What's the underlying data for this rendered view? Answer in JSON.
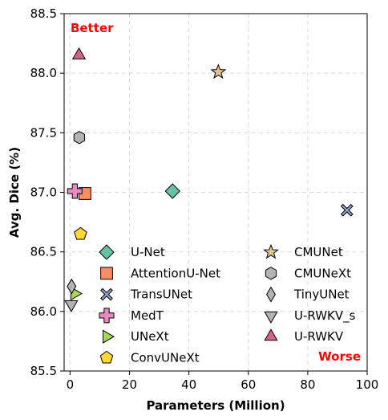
{
  "chart_data": {
    "type": "scatter",
    "xlabel": "Parameters (Million)",
    "ylabel": "Avg. Dice (%)",
    "xlim": [
      -2,
      100
    ],
    "ylim": [
      85.5,
      88.5
    ],
    "xticks": [
      0,
      20,
      40,
      60,
      80,
      100
    ],
    "yticks": [
      85.5,
      86.0,
      86.5,
      87.0,
      87.5,
      88.0,
      88.5
    ],
    "xtick_labels": [
      "0",
      "20",
      "40",
      "60",
      "80",
      "100"
    ],
    "ytick_labels": [
      "85.5",
      "86.0",
      "86.5",
      "87.0",
      "87.5",
      "88.0",
      "88.5"
    ],
    "grid": true,
    "legend": "lower center, two columns",
    "annotations": {
      "top_left": "Better",
      "bottom_right": "Worse"
    },
    "series": [
      {
        "name": "U-Net",
        "x": 34.5,
        "y": 87.01,
        "marker": "diamond",
        "color": "#66c2a5"
      },
      {
        "name": "AttentionU-Net",
        "x": 5.0,
        "y": 86.99,
        "marker": "square",
        "color": "#fc8d62"
      },
      {
        "name": "TransUNet",
        "x": 93.2,
        "y": 86.85,
        "marker": "x",
        "color": "#8da0cb"
      },
      {
        "name": "MedT",
        "x": 1.6,
        "y": 87.01,
        "marker": "plus",
        "color": "#e78ac3"
      },
      {
        "name": "UNeXt",
        "x": 1.5,
        "y": 86.15,
        "marker": "triangle-right",
        "color": "#a6d854"
      },
      {
        "name": "ConvUNeXt",
        "x": 3.5,
        "y": 86.65,
        "marker": "pentagon",
        "color": "#ffd92f"
      },
      {
        "name": "CMUNet",
        "x": 49.9,
        "y": 88.01,
        "marker": "star",
        "color": "#e5c494"
      },
      {
        "name": "CMUNeXt",
        "x": 3.1,
        "y": 87.46,
        "marker": "hexagon",
        "color": "#b3b3b3"
      },
      {
        "name": "TinyUNet",
        "x": 0.5,
        "y": 86.21,
        "marker": "thin-diamond",
        "color": "#b3b3b3"
      },
      {
        "name": "U-RWKV_s",
        "x": 0.4,
        "y": 86.06,
        "marker": "triangle-down",
        "color": "#b3b3b3"
      },
      {
        "name": "U-RWKV",
        "x": 3.0,
        "y": 88.15,
        "marker": "triangle-up",
        "color": "#d6608f"
      }
    ]
  }
}
